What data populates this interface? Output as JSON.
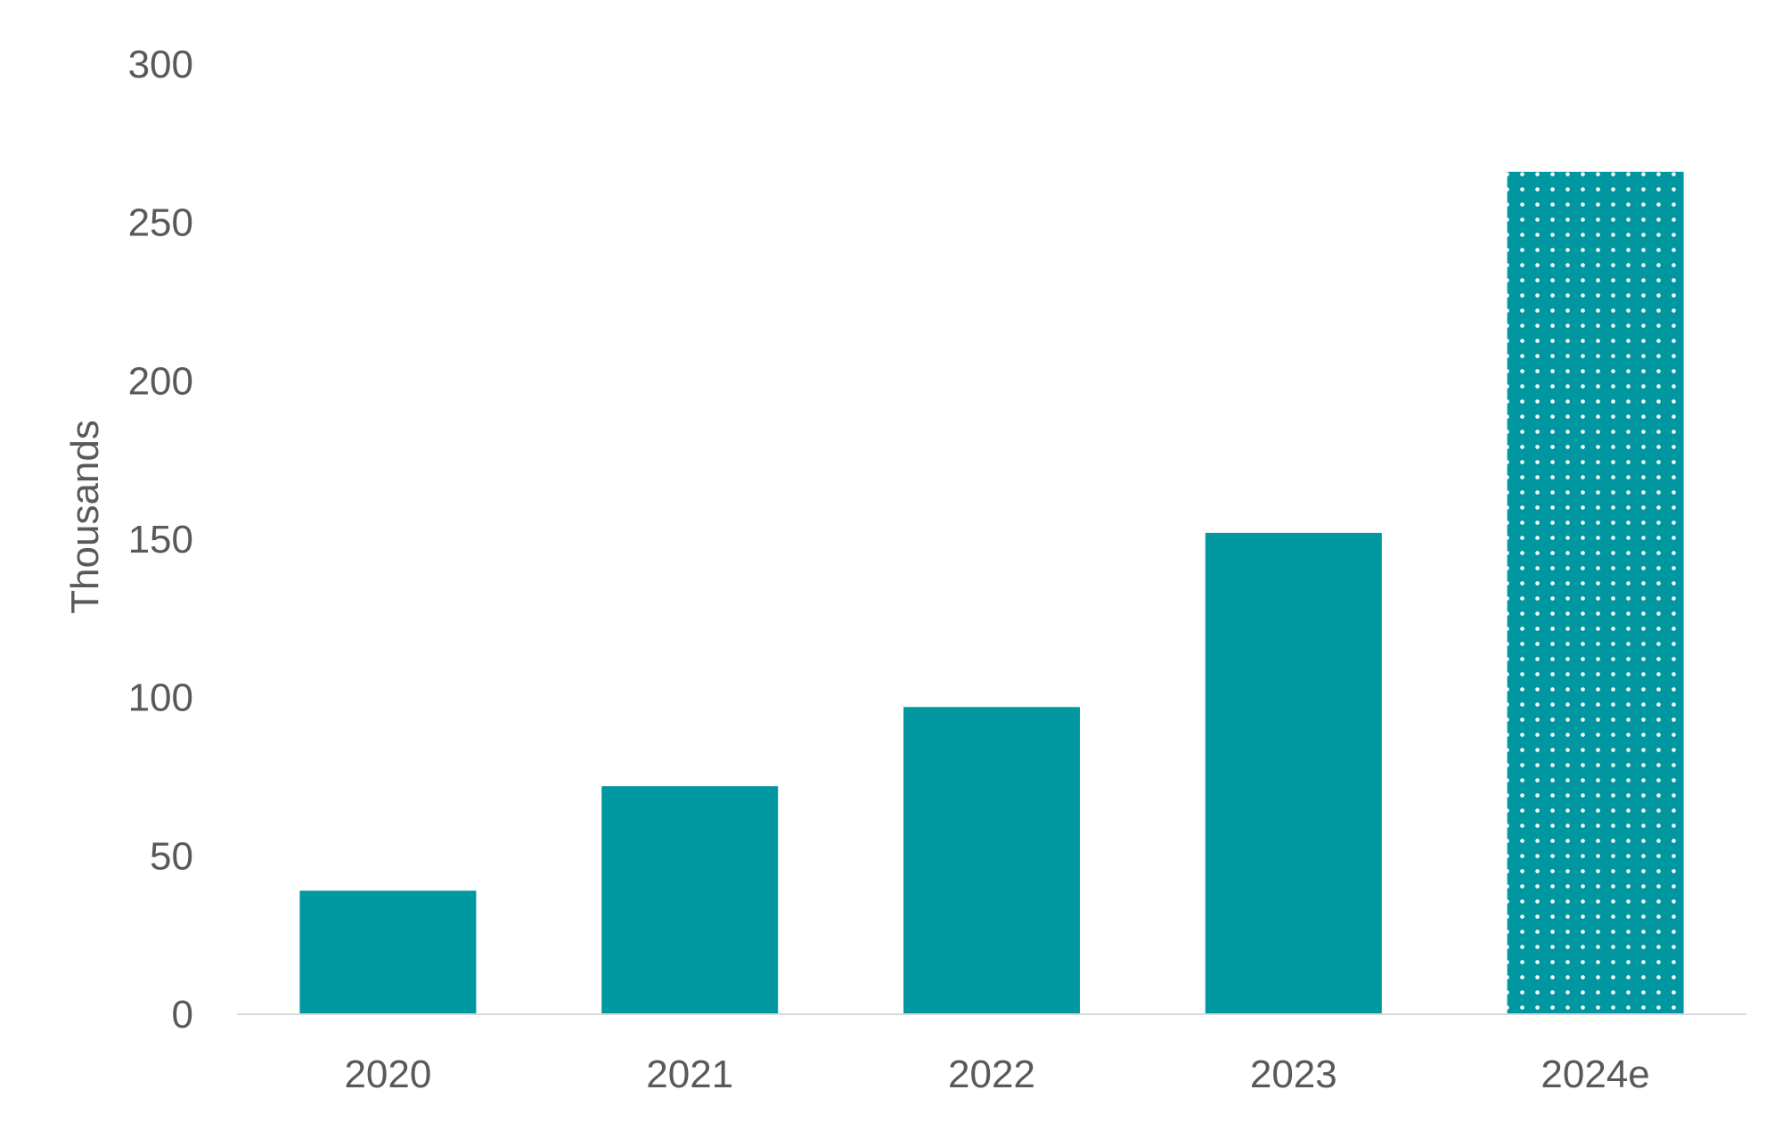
{
  "chart_data": {
    "type": "bar",
    "title": "",
    "xlabel": "",
    "ylabel": "Thousands",
    "categories": [
      "2020",
      "2021",
      "2022",
      "2023",
      "2024e"
    ],
    "values": [
      39,
      72,
      97,
      152,
      266
    ],
    "estimated": [
      false,
      false,
      false,
      false,
      true
    ],
    "ylim": [
      0,
      300
    ],
    "yticks": [
      0,
      50,
      100,
      150,
      200,
      250,
      300
    ],
    "grid": false,
    "legend": "none",
    "colors": {
      "bar": "#0097A0",
      "estimate_dot": "#ffffff",
      "axis_line": "#D9D9D9",
      "text": "#595959"
    }
  }
}
